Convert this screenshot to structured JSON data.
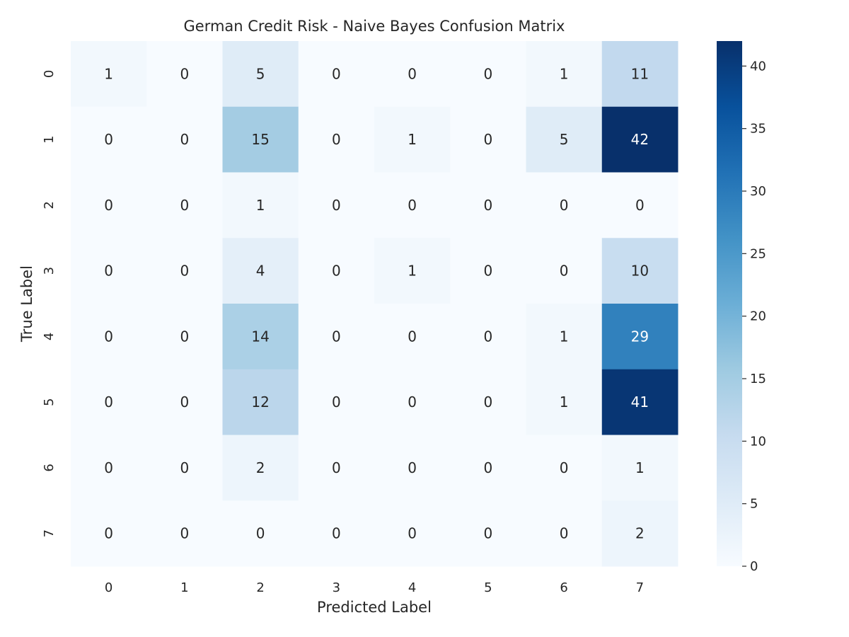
{
  "chart_data": {
    "type": "heatmap",
    "title": "German Credit Risk - Naive Bayes Confusion Matrix",
    "xlabel": "Predicted Label",
    "ylabel": "True Label",
    "x_categories": [
      "0",
      "1",
      "2",
      "3",
      "4",
      "5",
      "6",
      "7"
    ],
    "y_categories": [
      "0",
      "1",
      "2",
      "3",
      "4",
      "5",
      "6",
      "7"
    ],
    "values": [
      [
        1,
        0,
        5,
        0,
        0,
        0,
        1,
        11
      ],
      [
        0,
        0,
        15,
        0,
        1,
        0,
        5,
        42
      ],
      [
        0,
        0,
        1,
        0,
        0,
        0,
        0,
        0
      ],
      [
        0,
        0,
        4,
        0,
        1,
        0,
        0,
        10
      ],
      [
        0,
        0,
        14,
        0,
        0,
        0,
        1,
        29
      ],
      [
        0,
        0,
        12,
        0,
        0,
        0,
        1,
        41
      ],
      [
        0,
        0,
        2,
        0,
        0,
        0,
        0,
        1
      ],
      [
        0,
        0,
        0,
        0,
        0,
        0,
        0,
        2
      ]
    ],
    "colormap": "Blues",
    "colorbar": {
      "range": [
        0,
        42
      ],
      "ticks": [
        0,
        5,
        10,
        15,
        20,
        25,
        30,
        35,
        40
      ]
    },
    "grid": false
  }
}
